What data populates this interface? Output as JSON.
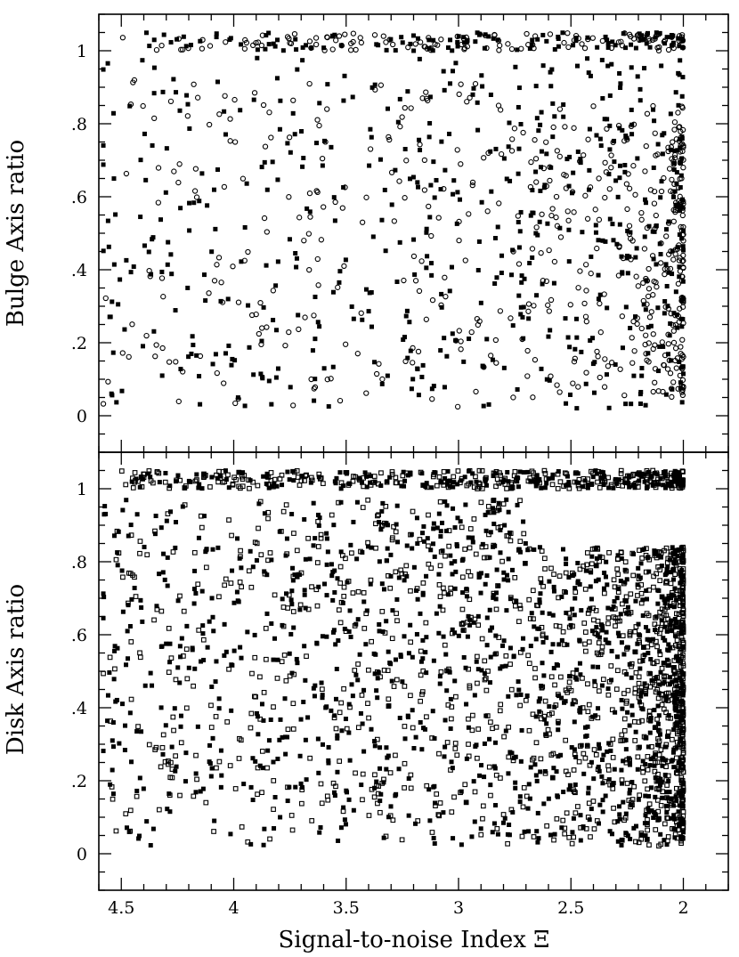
{
  "chart_data": [
    {
      "type": "scatter",
      "panel": "top",
      "title": "",
      "xlabel": "",
      "ylabel": "Bulge Axis ratio",
      "xlim": [
        4.6,
        1.8
      ],
      "ylim": [
        -0.1,
        1.1
      ],
      "x_reversed": true,
      "yticks": [
        0,
        0.2,
        0.4,
        0.6,
        0.8,
        1
      ],
      "ytick_labels": [
        "0",
        ".2",
        ".4",
        ".6",
        ".8",
        "1"
      ],
      "grid": false,
      "series": [
        {
          "marker": "filled-square",
          "color": "#000000",
          "approx_count": 700
        },
        {
          "marker": "open-circle",
          "color": "#000000",
          "approx_count": 650
        }
      ],
      "description_of_distribution": "bands near 1.0 across all x; points denser toward x=2; open circles concentrated at x 2.0–2.7, y 0.1–0.8"
    },
    {
      "type": "scatter",
      "panel": "bottom",
      "title": "",
      "xlabel": "Signal-to-noise Index Ξ",
      "ylabel": "Disk Axis ratio",
      "xlim": [
        4.6,
        1.8
      ],
      "ylim": [
        -0.1,
        1.1
      ],
      "x_reversed": true,
      "xticks": [
        4.5,
        4,
        3.5,
        3,
        2.5,
        2
      ],
      "xtick_labels": [
        "4.5",
        "4",
        "3.5",
        "3",
        "2.5",
        "2"
      ],
      "yticks": [
        0,
        0.2,
        0.4,
        0.6,
        0.8,
        1
      ],
      "ytick_labels": [
        "0",
        ".2",
        ".4",
        ".6",
        ".8",
        "1"
      ],
      "grid": false,
      "series": [
        {
          "marker": "filled-square",
          "color": "#000000",
          "approx_count": 1400
        },
        {
          "marker": "open-square",
          "color": "#000000",
          "approx_count": 1400
        }
      ],
      "description_of_distribution": "band near 1.0–1.05; very dense cloud at x 2.0–2.6, y 0.05–0.8; sparse at x > 3.5"
    }
  ]
}
